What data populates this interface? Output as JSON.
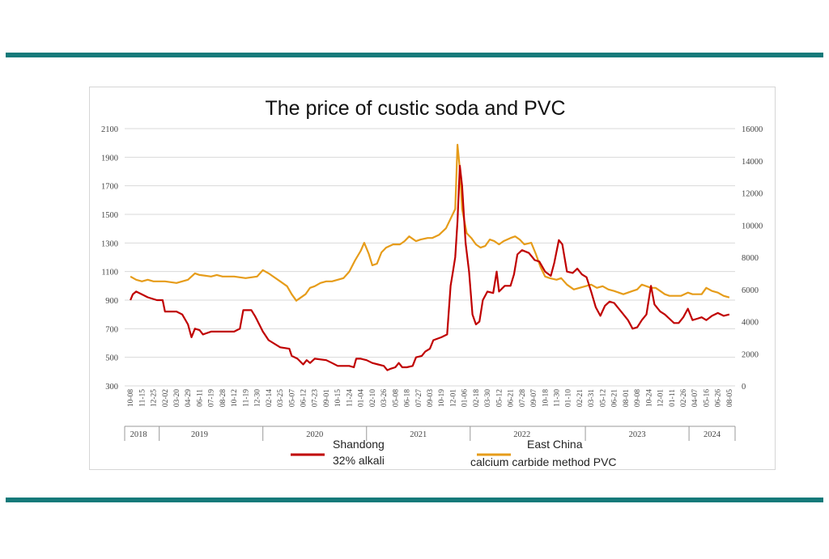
{
  "colors": {
    "rule": "#157a7a",
    "series_red": "#c00000",
    "series_orange": "#e69c1a",
    "grid": "#d9d9d9"
  },
  "chart_data": {
    "type": "line",
    "title": "The price of custic soda and PVC",
    "left_axis": {
      "ylim": [
        300,
        2100
      ],
      "ticks": [
        "300",
        "500",
        "700",
        "900",
        "1100",
        "1300",
        "1500",
        "1700",
        "1900",
        "2100"
      ]
    },
    "right_axis": {
      "ylim": [
        0,
        16000
      ],
      "ticks": [
        "0",
        "2000",
        "4000",
        "6000",
        "8000",
        "10000",
        "12000",
        "14000",
        "16000"
      ]
    },
    "x_tick_labels": [
      "10-08",
      "11-15",
      "12-25",
      "02-02",
      "03-20",
      "04-29",
      "06-11",
      "07-19",
      "08-28",
      "10-12",
      "11-19",
      "12-30",
      "02-14",
      "03-25",
      "05-07",
      "06-12",
      "07-23",
      "09-01",
      "10-15",
      "11-24",
      "01-04",
      "02-10",
      "03-26",
      "05-08",
      "06-18",
      "07-27",
      "09-03",
      "10-19",
      "12-01",
      "01-06",
      "02-18",
      "03-30",
      "05-12",
      "06-21",
      "07-28",
      "09-07",
      "10-18",
      "11-30",
      "01-10",
      "02-21",
      "03-31",
      "05-12",
      "06-21",
      "08-01",
      "09-08",
      "10-24",
      "12-01",
      "01-11",
      "02-26",
      "04-07",
      "05-16",
      "06-26",
      "08-05"
    ],
    "year_labels": [
      "2018",
      "2019",
      "2020",
      "2021",
      "2022",
      "2023",
      "2024"
    ],
    "series": [
      {
        "name": "Shandong\n32% alkali",
        "legend_lines": [
          "Shandong",
          "32% alkali"
        ],
        "axis": "left",
        "color": "#c00000",
        "points": [
          [
            0,
            900
          ],
          [
            0.2,
            940
          ],
          [
            0.5,
            960
          ],
          [
            1,
            940
          ],
          [
            1.5,
            920
          ],
          [
            2.3,
            900
          ],
          [
            2.8,
            900
          ],
          [
            3,
            820
          ],
          [
            4,
            820
          ],
          [
            4.5,
            800
          ],
          [
            5,
            730
          ],
          [
            5.3,
            640
          ],
          [
            5.6,
            700
          ],
          [
            6,
            690
          ],
          [
            6.3,
            660
          ],
          [
            7,
            680
          ],
          [
            8,
            680
          ],
          [
            9,
            680
          ],
          [
            9.5,
            700
          ],
          [
            9.8,
            830
          ],
          [
            10.5,
            830
          ],
          [
            10.8,
            790
          ],
          [
            11,
            760
          ],
          [
            11.5,
            680
          ],
          [
            12,
            620
          ],
          [
            13,
            570
          ],
          [
            13.8,
            560
          ],
          [
            14,
            510
          ],
          [
            14.5,
            490
          ],
          [
            15,
            450
          ],
          [
            15.3,
            480
          ],
          [
            15.6,
            460
          ],
          [
            16,
            490
          ],
          [
            17,
            480
          ],
          [
            17.5,
            460
          ],
          [
            18,
            440
          ],
          [
            18.5,
            440
          ],
          [
            19,
            440
          ],
          [
            19.4,
            430
          ],
          [
            19.6,
            490
          ],
          [
            20,
            490
          ],
          [
            20.5,
            480
          ],
          [
            21,
            460
          ],
          [
            21.5,
            450
          ],
          [
            22,
            440
          ],
          [
            22.3,
            410
          ],
          [
            22.6,
            420
          ],
          [
            23,
            430
          ],
          [
            23.3,
            460
          ],
          [
            23.6,
            430
          ],
          [
            24,
            430
          ],
          [
            24.5,
            440
          ],
          [
            24.8,
            500
          ],
          [
            25.3,
            510
          ],
          [
            25.6,
            540
          ],
          [
            26,
            560
          ],
          [
            26.3,
            620
          ],
          [
            27,
            640
          ],
          [
            27.5,
            660
          ],
          [
            27.8,
            1000
          ],
          [
            28,
            1100
          ],
          [
            28.2,
            1200
          ],
          [
            28.4,
            1450
          ],
          [
            28.6,
            1840
          ],
          [
            28.8,
            1700
          ],
          [
            29.1,
            1300
          ],
          [
            29.4,
            1100
          ],
          [
            29.7,
            800
          ],
          [
            30,
            730
          ],
          [
            30.3,
            750
          ],
          [
            30.6,
            900
          ],
          [
            31,
            960
          ],
          [
            31.5,
            950
          ],
          [
            31.8,
            1100
          ],
          [
            32,
            960
          ],
          [
            32.5,
            1000
          ],
          [
            33,
            1000
          ],
          [
            33.3,
            1080
          ],
          [
            33.6,
            1220
          ],
          [
            34,
            1250
          ],
          [
            34.6,
            1230
          ],
          [
            35.1,
            1180
          ],
          [
            35.5,
            1170
          ],
          [
            36,
            1100
          ],
          [
            36.5,
            1070
          ],
          [
            36.8,
            1160
          ],
          [
            37.2,
            1320
          ],
          [
            37.5,
            1290
          ],
          [
            37.9,
            1100
          ],
          [
            38.4,
            1090
          ],
          [
            38.8,
            1120
          ],
          [
            39.2,
            1080
          ],
          [
            39.6,
            1060
          ],
          [
            40,
            960
          ],
          [
            40.4,
            850
          ],
          [
            40.8,
            790
          ],
          [
            41.2,
            860
          ],
          [
            41.6,
            890
          ],
          [
            42,
            880
          ],
          [
            42.6,
            820
          ],
          [
            43.2,
            760
          ],
          [
            43.6,
            700
          ],
          [
            44,
            710
          ],
          [
            44.4,
            760
          ],
          [
            44.8,
            800
          ],
          [
            45.2,
            1000
          ],
          [
            45.5,
            870
          ],
          [
            46,
            820
          ],
          [
            46.4,
            800
          ],
          [
            46.8,
            770
          ],
          [
            47.2,
            740
          ],
          [
            47.6,
            740
          ],
          [
            48,
            780
          ],
          [
            48.4,
            840
          ],
          [
            48.8,
            760
          ],
          [
            49.2,
            770
          ],
          [
            49.6,
            780
          ],
          [
            50,
            760
          ],
          [
            50.5,
            790
          ],
          [
            51,
            810
          ],
          [
            51.5,
            790
          ],
          [
            52,
            800
          ]
        ]
      },
      {
        "name": "East China\ncalcium carbide method PVC",
        "legend_lines": [
          "East China",
          "calcium carbide method PVC"
        ],
        "axis": "right",
        "color": "#e69c1a",
        "points": [
          [
            0,
            6800
          ],
          [
            0.5,
            6600
          ],
          [
            1,
            6500
          ],
          [
            1.5,
            6600
          ],
          [
            2,
            6500
          ],
          [
            3,
            6500
          ],
          [
            4,
            6400
          ],
          [
            5,
            6600
          ],
          [
            5.6,
            7000
          ],
          [
            6,
            6900
          ],
          [
            7,
            6800
          ],
          [
            7.5,
            6900
          ],
          [
            8,
            6800
          ],
          [
            9,
            6800
          ],
          [
            10,
            6700
          ],
          [
            11,
            6800
          ],
          [
            11.5,
            7200
          ],
          [
            12,
            7000
          ],
          [
            13,
            6500
          ],
          [
            13.6,
            6200
          ],
          [
            14,
            5700
          ],
          [
            14.4,
            5300
          ],
          [
            14.8,
            5500
          ],
          [
            15.2,
            5700
          ],
          [
            15.6,
            6100
          ],
          [
            16,
            6200
          ],
          [
            16.5,
            6400
          ],
          [
            17,
            6500
          ],
          [
            17.5,
            6500
          ],
          [
            18,
            6600
          ],
          [
            18.5,
            6700
          ],
          [
            19,
            7100
          ],
          [
            19.5,
            7800
          ],
          [
            20,
            8400
          ],
          [
            20.3,
            8900
          ],
          [
            20.7,
            8200
          ],
          [
            21,
            7500
          ],
          [
            21.4,
            7600
          ],
          [
            21.8,
            8300
          ],
          [
            22.2,
            8600
          ],
          [
            22.8,
            8800
          ],
          [
            23.4,
            8800
          ],
          [
            23.8,
            9000
          ],
          [
            24.2,
            9300
          ],
          [
            24.8,
            9000
          ],
          [
            25.2,
            9100
          ],
          [
            25.8,
            9200
          ],
          [
            26.2,
            9200
          ],
          [
            26.8,
            9400
          ],
          [
            27.4,
            9800
          ],
          [
            27.8,
            10400
          ],
          [
            28.2,
            11000
          ],
          [
            28.4,
            15000
          ],
          [
            28.6,
            13500
          ],
          [
            28.8,
            11000
          ],
          [
            29.2,
            9500
          ],
          [
            29.6,
            9200
          ],
          [
            30,
            8800
          ],
          [
            30.4,
            8600
          ],
          [
            30.8,
            8700
          ],
          [
            31.2,
            9100
          ],
          [
            31.6,
            9000
          ],
          [
            32,
            8800
          ],
          [
            32.4,
            9000
          ],
          [
            33,
            9200
          ],
          [
            33.4,
            9300
          ],
          [
            33.8,
            9100
          ],
          [
            34.2,
            8800
          ],
          [
            34.8,
            8900
          ],
          [
            35.2,
            8200
          ],
          [
            35.6,
            7400
          ],
          [
            36,
            6800
          ],
          [
            36.4,
            6700
          ],
          [
            37,
            6600
          ],
          [
            37.4,
            6700
          ],
          [
            37.9,
            6300
          ],
          [
            38.5,
            6000
          ],
          [
            39,
            6100
          ],
          [
            39.5,
            6200
          ],
          [
            40,
            6300
          ],
          [
            40.5,
            6100
          ],
          [
            41,
            6200
          ],
          [
            41.5,
            6000
          ],
          [
            42,
            5900
          ],
          [
            42.4,
            5800
          ],
          [
            42.8,
            5700
          ],
          [
            43.2,
            5800
          ],
          [
            43.6,
            5900
          ],
          [
            44,
            6000
          ],
          [
            44.4,
            6300
          ],
          [
            44.8,
            6200
          ],
          [
            45.2,
            6100
          ],
          [
            45.6,
            6100
          ],
          [
            46,
            5900
          ],
          [
            46.4,
            5700
          ],
          [
            46.8,
            5600
          ],
          [
            47.2,
            5600
          ],
          [
            47.8,
            5600
          ],
          [
            48.4,
            5800
          ],
          [
            48.8,
            5700
          ],
          [
            49.2,
            5700
          ],
          [
            49.6,
            5700
          ],
          [
            50,
            6100
          ],
          [
            50.5,
            5900
          ],
          [
            51,
            5800
          ],
          [
            51.5,
            5600
          ],
          [
            52,
            5500
          ]
        ]
      }
    ],
    "grid": "horizontal",
    "legend_position": "bottom"
  }
}
